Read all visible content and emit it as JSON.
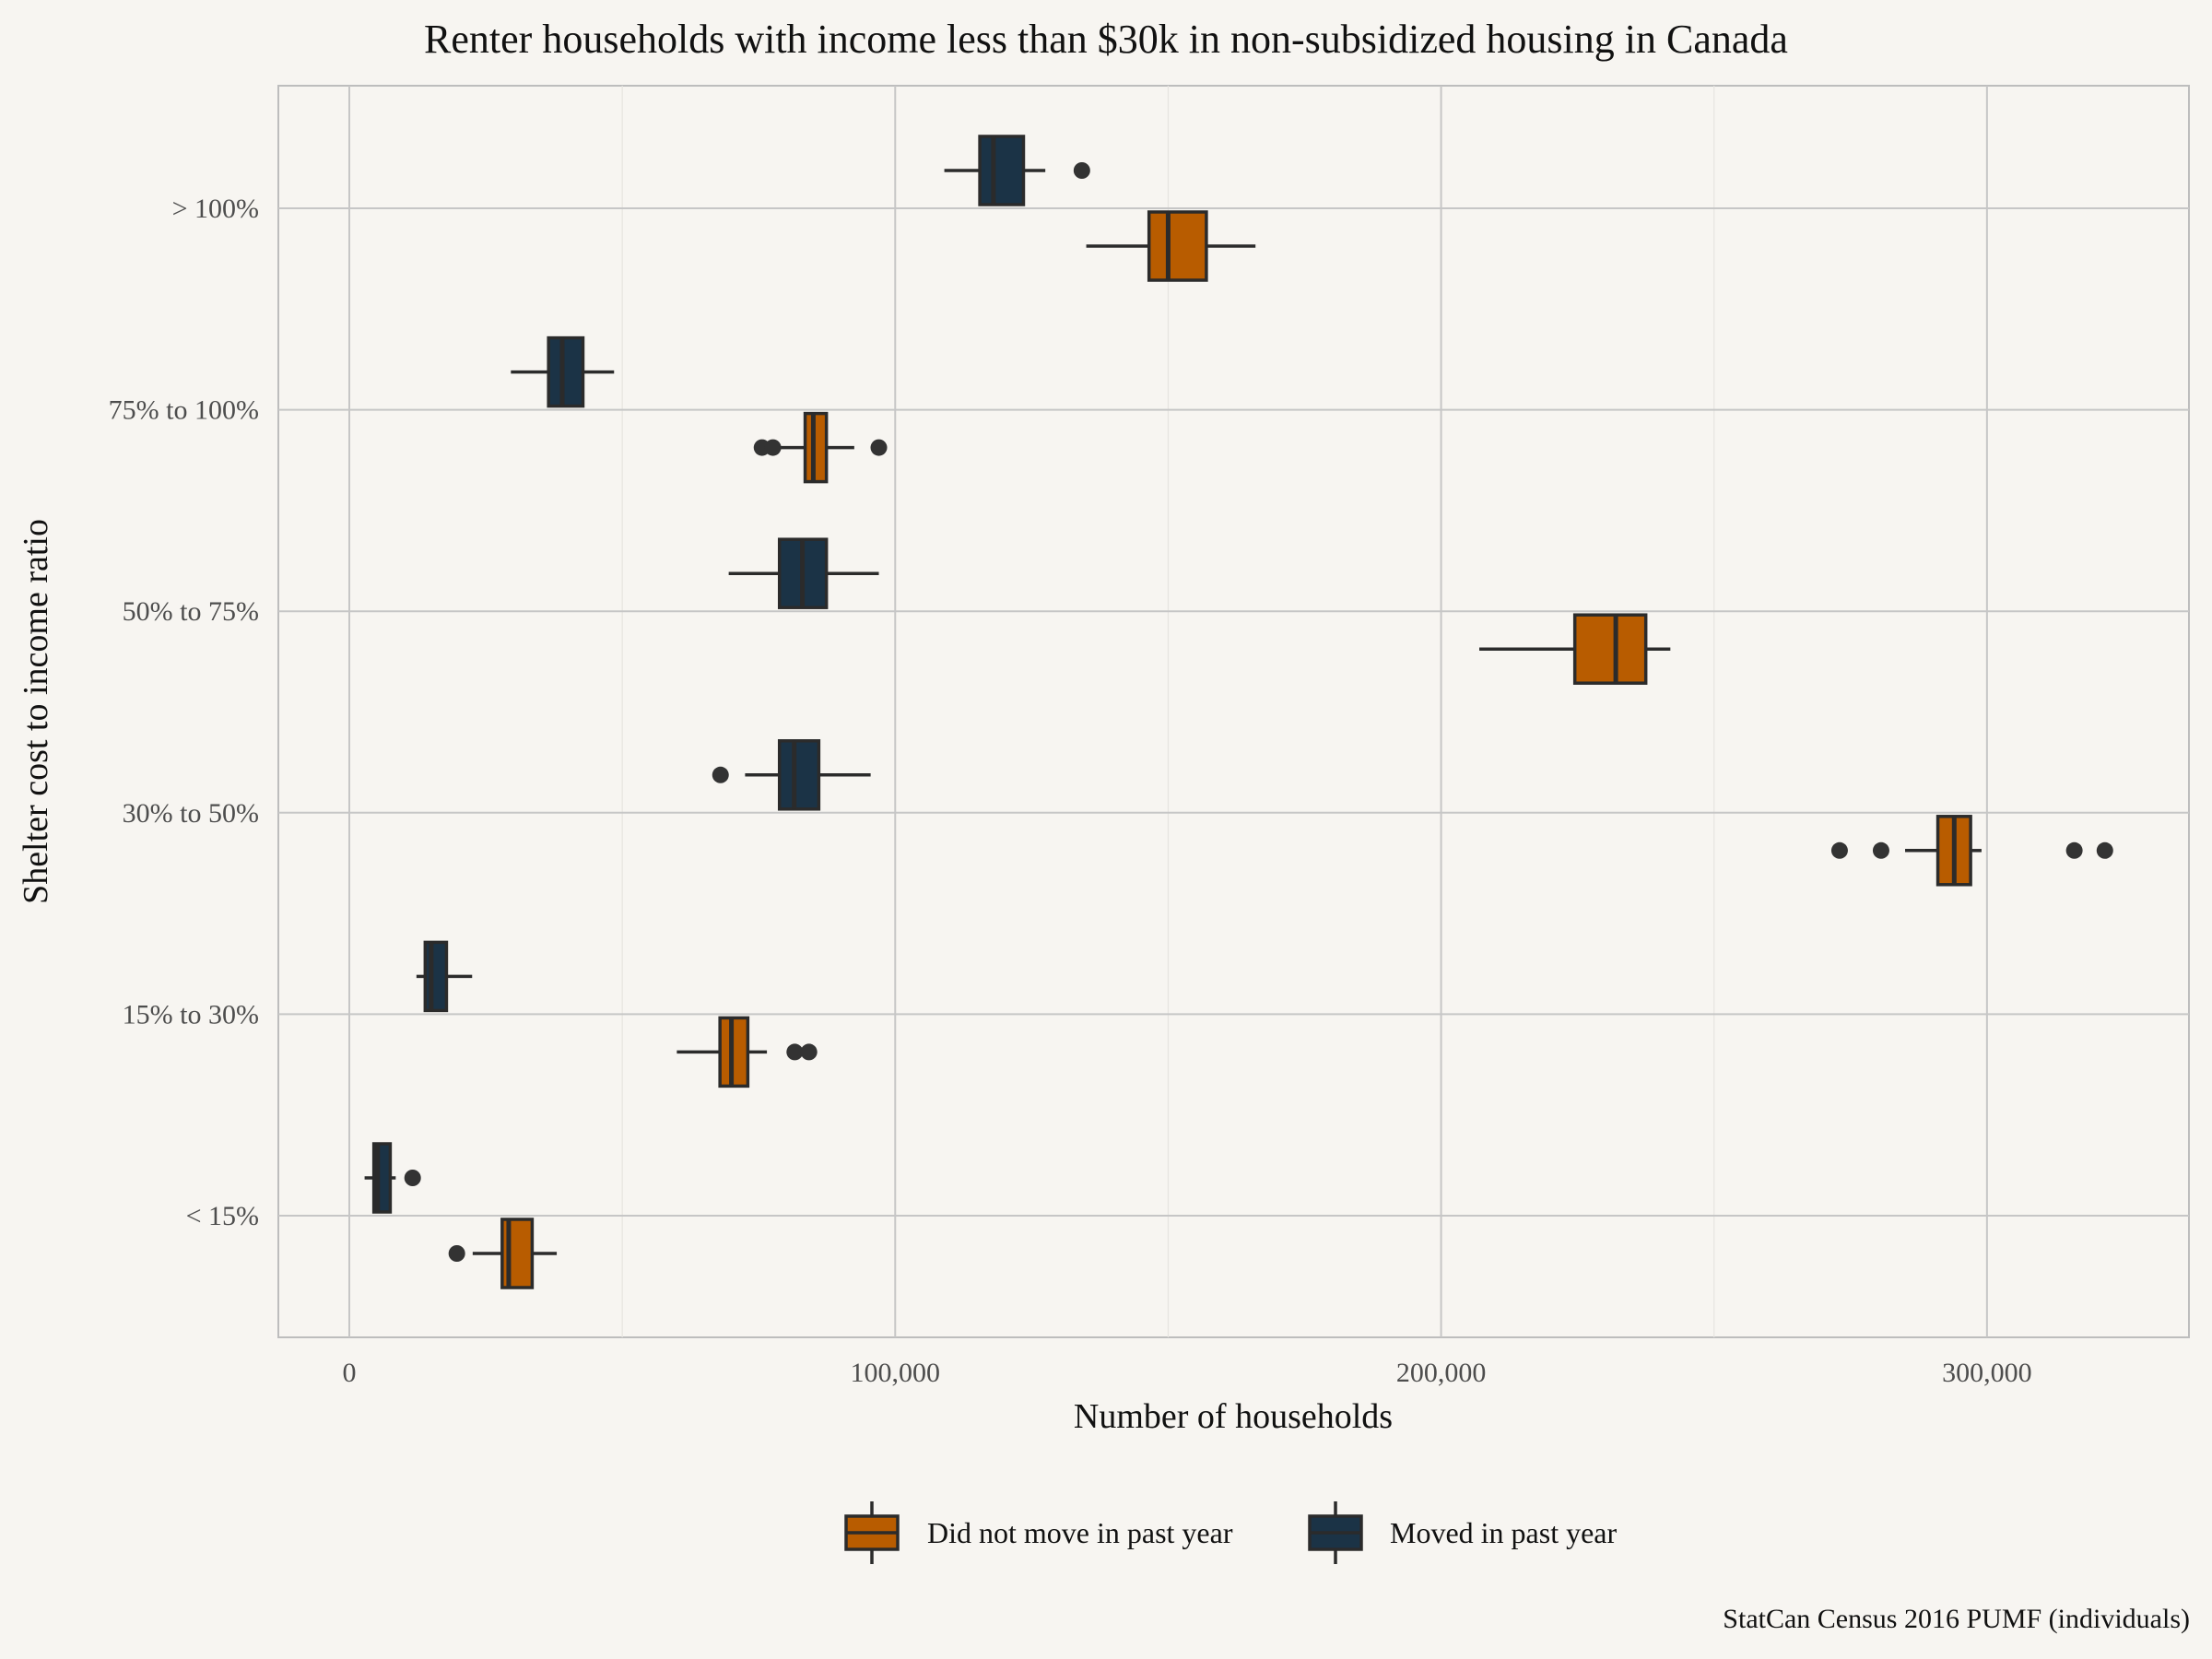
{
  "chart_data": {
    "type": "boxplot",
    "orientation": "horizontal",
    "title": "Renter households with income less than $30k in non-subsidized housing in Canada",
    "xlabel": "Number of households",
    "ylabel": "Shelter cost to income ratio",
    "caption": "StatCan Census 2016 PUMF (individuals)",
    "xlim": [
      -13000,
      337000
    ],
    "x_ticks": [
      0,
      100000,
      200000,
      300000
    ],
    "x_tick_labels": [
      "0",
      "100,000",
      "200,000",
      "300,000"
    ],
    "categories": [
      "< 15%",
      "15% to 30%",
      "30% to 50%",
      "50% to 75%",
      "75% to 100%",
      "> 100%"
    ],
    "grid": true,
    "legend": {
      "position": "bottom"
    },
    "colors": {
      "Did not move in past year": "#b85c00",
      "Moved in past year": "#1b3346"
    },
    "series": [
      {
        "name": "Did not move in past year",
        "boxes": [
          {
            "category": "< 15%",
            "whisker_low": 22600,
            "q1": 28000,
            "median": 29200,
            "q3": 33500,
            "whisker_high": 38000,
            "outliers": [
              19700
            ]
          },
          {
            "category": "15% to 30%",
            "whisker_low": 60000,
            "q1": 67900,
            "median": 70000,
            "q3": 73000,
            "whisker_high": 76500,
            "outliers": [
              81600,
              84200
            ]
          },
          {
            "category": "30% to 50%",
            "whisker_low": 285000,
            "q1": 291000,
            "median": 294000,
            "q3": 297000,
            "whisker_high": 299000,
            "outliers": [
              273000,
              280600,
              316000,
              321600
            ]
          },
          {
            "category": "50% to 75%",
            "whisker_low": 207000,
            "q1": 224500,
            "median": 232000,
            "q3": 237500,
            "whisker_high": 242000,
            "outliers": []
          },
          {
            "category": "75% to 100%",
            "whisker_low": 79000,
            "q1": 83500,
            "median": 85000,
            "q3": 87400,
            "whisker_high": 92500,
            "outliers": [
              75600,
              77600,
              97000
            ]
          },
          {
            "category": "> 100%",
            "whisker_low": 135000,
            "q1": 146500,
            "median": 150000,
            "q3": 157000,
            "whisker_high": 166000,
            "outliers": []
          }
        ]
      },
      {
        "name": "Moved in past year",
        "boxes": [
          {
            "category": "< 15%",
            "whisker_low": 2800,
            "q1": 4500,
            "median": 5200,
            "q3": 7500,
            "whisker_high": 8500,
            "outliers": [
              11600
            ]
          },
          {
            "category": "15% to 30%",
            "whisker_low": 12300,
            "q1": 13900,
            "median": 15000,
            "q3": 17800,
            "whisker_high": 22500,
            "outliers": []
          },
          {
            "category": "30% to 50%",
            "whisker_low": 72500,
            "q1": 78800,
            "median": 81500,
            "q3": 86000,
            "whisker_high": 95500,
            "outliers": [
              68000
            ]
          },
          {
            "category": "50% to 75%",
            "whisker_low": 69500,
            "q1": 78800,
            "median": 83000,
            "q3": 87400,
            "whisker_high": 97000,
            "outliers": []
          },
          {
            "category": "75% to 100%",
            "whisker_low": 29600,
            "q1": 36500,
            "median": 39000,
            "q3": 42800,
            "whisker_high": 48500,
            "outliers": []
          },
          {
            "category": "> 100%",
            "whisker_low": 109000,
            "q1": 115500,
            "median": 118000,
            "q3": 123500,
            "whisker_high": 127500,
            "outliers": [
              134200
            ]
          }
        ]
      }
    ]
  }
}
